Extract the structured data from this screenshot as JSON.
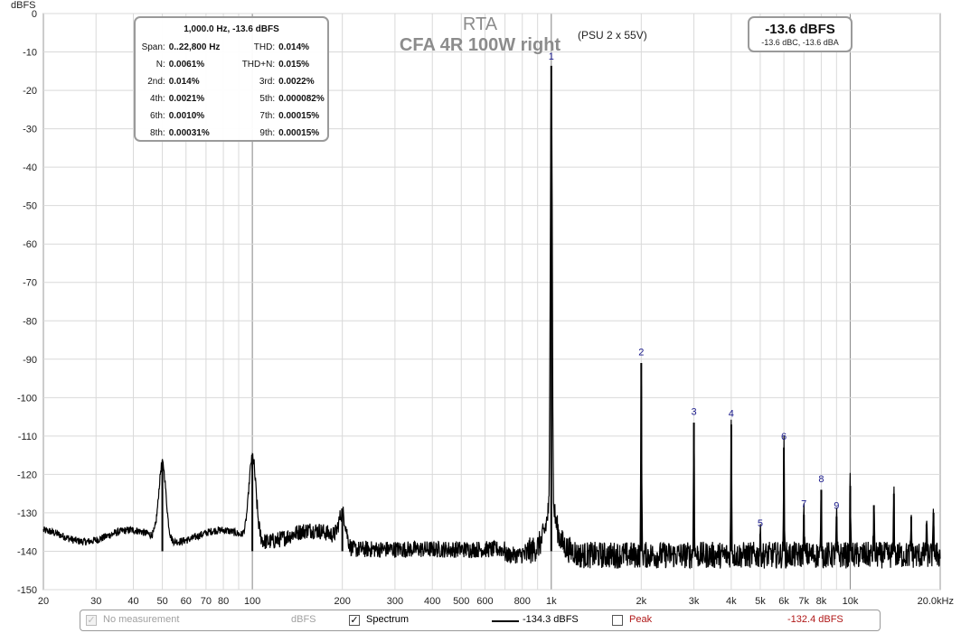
{
  "chart_data": {
    "type": "line",
    "title": "RTA",
    "subtitle": "CFA 4R 100W right",
    "note": "(PSU 2 x 55V)",
    "ylabel": "dBFS",
    "xlabel": "",
    "x_scale": "log",
    "xlim": [
      20,
      20000
    ],
    "ylim": [
      -150,
      0
    ],
    "grid": true,
    "x_ticks": [
      {
        "v": 20,
        "label": "20"
      },
      {
        "v": 30,
        "label": "30"
      },
      {
        "v": 40,
        "label": "40"
      },
      {
        "v": 50,
        "label": "50"
      },
      {
        "v": 60,
        "label": "60"
      },
      {
        "v": 70,
        "label": "70"
      },
      {
        "v": 80,
        "label": "80"
      },
      {
        "v": 100,
        "label": "100"
      },
      {
        "v": 200,
        "label": "200"
      },
      {
        "v": 300,
        "label": "300"
      },
      {
        "v": 400,
        "label": "400"
      },
      {
        "v": 500,
        "label": "500"
      },
      {
        "v": 600,
        "label": "600"
      },
      {
        "v": 800,
        "label": "800"
      },
      {
        "v": 1000,
        "label": "1k"
      },
      {
        "v": 2000,
        "label": "2k"
      },
      {
        "v": 3000,
        "label": "3k"
      },
      {
        "v": 4000,
        "label": "4k"
      },
      {
        "v": 5000,
        "label": "5k"
      },
      {
        "v": 6000,
        "label": "6k"
      },
      {
        "v": 7000,
        "label": "7k"
      },
      {
        "v": 8000,
        "label": "8k"
      },
      {
        "v": 10000,
        "label": "10k"
      },
      {
        "v": 20000,
        "label": "20.0kHz"
      }
    ],
    "y_ticks": [
      0,
      -10,
      -20,
      -30,
      -40,
      -50,
      -60,
      -70,
      -80,
      -90,
      -100,
      -110,
      -120,
      -130,
      -140,
      -150
    ],
    "spectrum_peaks": [
      {
        "x": 50,
        "y": -117
      },
      {
        "x": 100,
        "y": -115.5
      },
      {
        "x": 200,
        "y": -130
      },
      {
        "x": 1000,
        "y": -13.6
      },
      {
        "x": 2000,
        "y": -91
      },
      {
        "x": 3000,
        "y": -106.5
      },
      {
        "x": 4000,
        "y": -107
      },
      {
        "x": 5000,
        "y": -135.5
      },
      {
        "x": 6000,
        "y": -113
      },
      {
        "x": 7000,
        "y": -130.5
      },
      {
        "x": 8000,
        "y": -124
      },
      {
        "x": 9000,
        "y": -131
      },
      {
        "x": 10000,
        "y": -123
      },
      {
        "x": 12000,
        "y": -128
      },
      {
        "x": 14000,
        "y": -125
      },
      {
        "x": 16000,
        "y": -131
      },
      {
        "x": 18000,
        "y": -133
      },
      {
        "x": 19000,
        "y": -130
      }
    ],
    "harmonic_labels": [
      {
        "label": "1",
        "x": 1000,
        "y": -12
      },
      {
        "label": "2",
        "x": 2000,
        "y": -89
      },
      {
        "label": "3",
        "x": 3000,
        "y": -104.5
      },
      {
        "label": "4",
        "x": 4000,
        "y": -105
      },
      {
        "label": "5",
        "x": 5000,
        "y": -133.5
      },
      {
        "label": "6",
        "x": 6000,
        "y": -111
      },
      {
        "label": "7",
        "x": 7000,
        "y": -128.5
      },
      {
        "label": "8",
        "x": 8000,
        "y": -122
      },
      {
        "label": "9",
        "x": 9000,
        "y": -129
      }
    ],
    "noise_floor_dbfs": -140,
    "series": [
      {
        "name": "Spectrum",
        "color": "#000000"
      }
    ]
  },
  "infobox": {
    "header": "1,000.0 Hz, -13.6 dBFS",
    "rows": [
      {
        "k1": "Span:",
        "v1": "0..22,800 Hz",
        "k2": "THD:",
        "v2": "0.014%"
      },
      {
        "k1": "N:",
        "v1": "0.0061%",
        "k2": "THD+N:",
        "v2": "0.015%"
      },
      {
        "k1": "2nd:",
        "v1": "0.014%",
        "k2": "3rd:",
        "v2": "0.0022%"
      },
      {
        "k1": "4th:",
        "v1": "0.0021%",
        "k2": "5th:",
        "v2": "0.000082%"
      },
      {
        "k1": "6th:",
        "v1": "0.0010%",
        "k2": "7th:",
        "v2": "0.00015%"
      },
      {
        "k1": "8th:",
        "v1": "0.00031%",
        "k2": "9th:",
        "v2": "0.00015%"
      }
    ]
  },
  "level": {
    "main": "-13.6 dBFS",
    "sub": "-13.6 dBC, -13.6 dBA"
  },
  "legend": {
    "no_measurement_label": "No measurement",
    "no_measurement_unit": "dBFS",
    "spectrum_label": "Spectrum",
    "spectrum_checked": true,
    "spectrum_value": "-134.3 dBFS",
    "peak_label": "Peak",
    "peak_checked": false,
    "peak_value": "-132.4 dBFS",
    "peak_color": "#b01818"
  }
}
